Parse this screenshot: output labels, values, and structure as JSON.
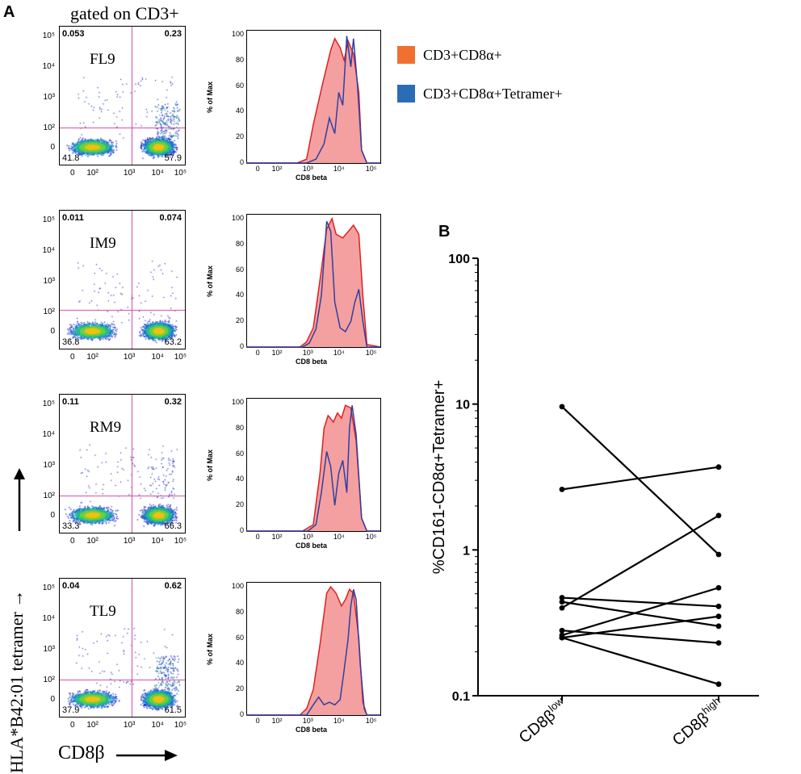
{
  "panel_a": {
    "letter": "A",
    "gated_label": "gated on CD3+",
    "y_axis_label": "HLA*B42:01 tetramer",
    "x_axis_label": "CD8β",
    "dot_plots": [
      {
        "peptide": "FL9",
        "ul": "0.053",
        "ur": "0.23",
        "ll": "41.8",
        "lr": "57.9"
      },
      {
        "peptide": "IM9",
        "ul": "0.011",
        "ur": "0.074",
        "ll": "36.8",
        "lr": "63.2"
      },
      {
        "peptide": "RM9",
        "ul": "0.11",
        "ur": "0.32",
        "ll": "33.3",
        "lr": "66.3"
      },
      {
        "peptide": "TL9",
        "ul": "0.04",
        "ur": "0.62",
        "ll": "37.9",
        "lr": "61.5"
      }
    ],
    "dot_y_ticks": [
      "10⁵",
      "10⁴",
      "10³",
      "10²",
      "0"
    ],
    "dot_x_ticks": [
      "0",
      "10²",
      "10³",
      "10⁴",
      "10⁵"
    ],
    "hist_y_label": "% of Max",
    "hist_x_label": "CD8 beta",
    "hist_y_ticks": [
      "100",
      "80",
      "60",
      "40",
      "20",
      "0"
    ],
    "hist_x_ticks": [
      "0",
      "10²",
      "10³",
      "10⁴",
      "10⁵"
    ],
    "legend": [
      {
        "label": "CD3+CD8α+",
        "color": "#f07030"
      },
      {
        "label": "CD3+CD8α+Tetramer+",
        "color": "#2a6db5"
      }
    ],
    "colors": {
      "quadrant_line": "#d040a0",
      "hist_fill": "#f4a0a0",
      "hist_red": "#e02020",
      "hist_blue": "#3040a0"
    }
  },
  "chart_data": {
    "type": "line",
    "panel_letter": "B",
    "title": "",
    "ylabel": "%CD161-CD8α+Tetramer+",
    "yscale": "log",
    "ylim": [
      0.1,
      100
    ],
    "y_ticks": [
      "100",
      "10",
      "1",
      "0.1"
    ],
    "categories": [
      {
        "main": "CD8β",
        "sup": "low"
      },
      {
        "main": "CD8β",
        "sup": "high"
      }
    ],
    "series": [
      {
        "name": "s1",
        "values": [
          9.6,
          0.93
        ]
      },
      {
        "name": "s2",
        "values": [
          2.6,
          3.7
        ]
      },
      {
        "name": "s3",
        "values": [
          0.47,
          0.41
        ]
      },
      {
        "name": "s4",
        "values": [
          0.44,
          0.3
        ]
      },
      {
        "name": "s5",
        "values": [
          0.4,
          1.72
        ]
      },
      {
        "name": "s6",
        "values": [
          0.28,
          0.23
        ]
      },
      {
        "name": "s7",
        "values": [
          0.26,
          0.55
        ]
      },
      {
        "name": "s8",
        "values": [
          0.25,
          0.35
        ]
      },
      {
        "name": "s9",
        "values": [
          0.25,
          0.12
        ]
      }
    ]
  }
}
